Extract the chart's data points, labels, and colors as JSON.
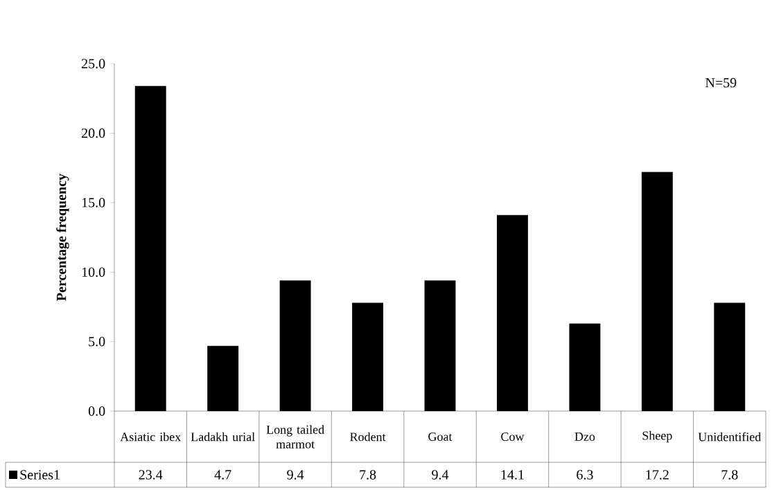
{
  "chart_data": {
    "type": "bar",
    "ylabel": "Percentage frequency",
    "categories": [
      "Asiatic ibex",
      "Ladakh urial",
      "Long tailed marmot",
      "Rodent",
      "Goat",
      "Cow",
      "Dzo",
      "Sheep",
      "Unidentified"
    ],
    "series": [
      {
        "name": "Series1",
        "color": "#000000",
        "values": [
          23.4,
          4.7,
          9.4,
          7.8,
          9.4,
          14.1,
          6.3,
          17.2,
          7.8
        ]
      }
    ],
    "ylim": [
      0,
      25
    ],
    "yticks": [
      {
        "value": 0,
        "label": "0.0"
      },
      {
        "value": 5,
        "label": "5.0"
      },
      {
        "value": 10,
        "label": "10.0"
      },
      {
        "value": 15,
        "label": "15.0"
      },
      {
        "value": 20,
        "label": "20.0"
      },
      {
        "value": 25,
        "label": "25.0"
      }
    ],
    "data_labels": true,
    "legend": "bottom",
    "annotations": [
      "N=59"
    ]
  }
}
